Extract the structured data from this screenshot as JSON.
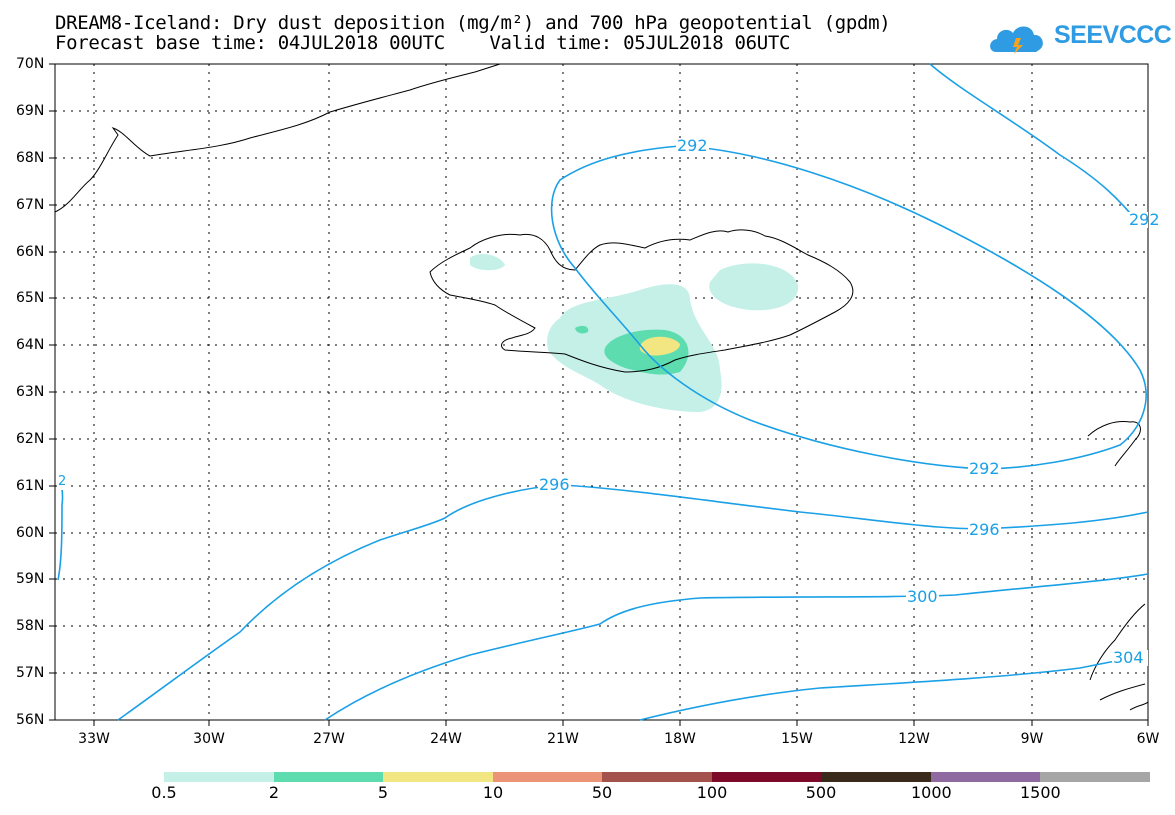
{
  "header": {
    "title_line1": "DREAM8-Iceland: Dry dust deposition (mg/m²) and 700 hPa geopotential (gpdm)",
    "title_line2": "Forecast base time: 04JUL2018 00UTC    Valid time: 05JUL2018 06UTC"
  },
  "logo": {
    "text": "SEEVCCC",
    "color": "#2f9be2",
    "icon": "cloud-icon"
  },
  "map": {
    "lat_ticks": [
      "70N",
      "69N",
      "68N",
      "67N",
      "66N",
      "65N",
      "64N",
      "63N",
      "62N",
      "61N",
      "60N",
      "59N",
      "58N",
      "57N",
      "56N"
    ],
    "lon_ticks": [
      "33W",
      "30W",
      "27W",
      "24W",
      "21W",
      "18W",
      "15W",
      "12W",
      "9W",
      "6W"
    ],
    "contour_color": "#1aa0e6",
    "contour_labels": [
      "292",
      "292",
      "296",
      "296",
      "300",
      "292",
      "304",
      "2"
    ]
  },
  "colorbar": {
    "labels": [
      "0.5",
      "2",
      "5",
      "10",
      "50",
      "100",
      "500",
      "1000",
      "1500"
    ],
    "colors": [
      "#c4f0e8",
      "#5ddcb0",
      "#f2e682",
      "#eb9477",
      "#a3524c",
      "#7e0a2a",
      "#3a2a1c",
      "#8e6aa0",
      "#a6a6a6"
    ]
  }
}
